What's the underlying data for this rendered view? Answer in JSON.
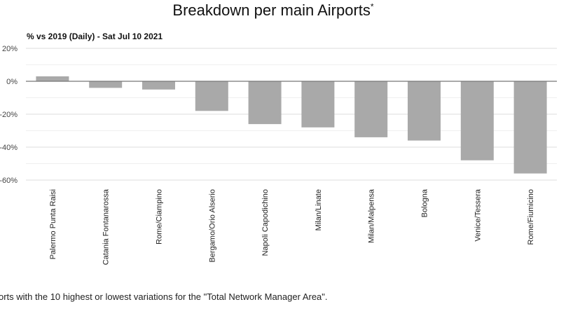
{
  "chart_data": {
    "type": "bar",
    "title": "Breakdown per main Airports",
    "title_mark": "*",
    "subtitle": "% vs 2019 (Daily) - Sat Jul 10 2021",
    "categories": [
      "Palermo Punta Raisi",
      "Catania Fontanarossa",
      "Rome/Ciampino",
      "Bergamo/Orio Alserio",
      "Napoli Capodichino",
      "Milan/Linate",
      "Milan/Malpensa",
      "Bologna",
      "Venice/Tessera",
      "Rome/Fiumicino"
    ],
    "values": [
      3,
      -4,
      -5,
      -18,
      -26,
      -28,
      -34,
      -36,
      -48,
      -56
    ],
    "ylim": [
      -60,
      20
    ],
    "yticks": [
      20,
      0,
      -20,
      -40,
      -60
    ],
    "ytick_labels": [
      "20%",
      "0%",
      "-20%",
      "-40%",
      "-60%"
    ],
    "grid": true,
    "bar_color": "#a9a9a9",
    "xlabel": "",
    "ylabel": ""
  },
  "footnote": "orts with the 10 highest or lowest variations for the \"Total Network Manager Area\"."
}
